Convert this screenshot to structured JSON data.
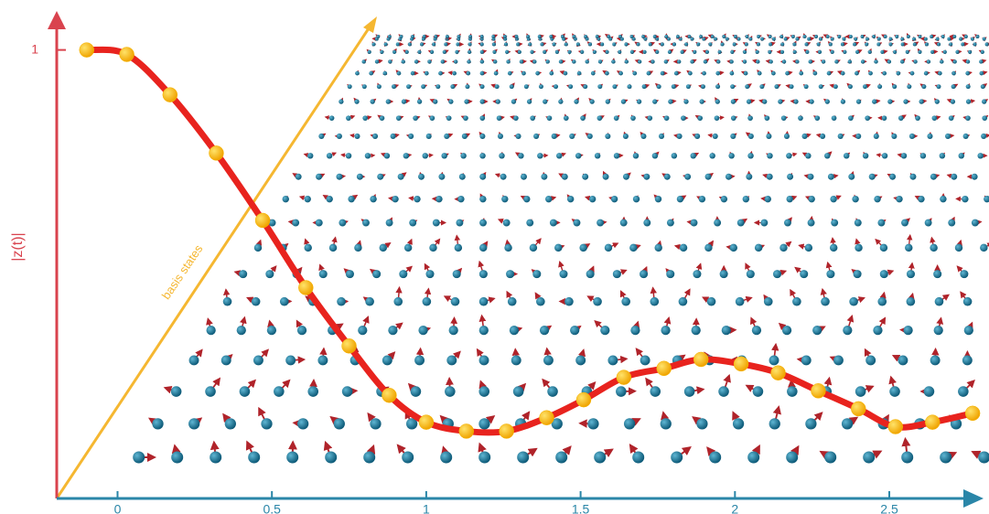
{
  "chart_data": {
    "type": "line",
    "y_label": "|z(t)|",
    "annotation": "basis states",
    "x": [
      -0.1,
      0.03,
      0.17,
      0.32,
      0.47,
      0.61,
      0.75,
      0.88,
      1.0,
      1.13,
      1.26,
      1.39,
      1.51,
      1.64,
      1.77,
      1.89,
      2.02,
      2.14,
      2.27,
      2.4,
      2.52,
      2.64,
      2.77
    ],
    "values": [
      1.0,
      0.99,
      0.9,
      0.77,
      0.62,
      0.47,
      0.34,
      0.23,
      0.17,
      0.15,
      0.15,
      0.18,
      0.22,
      0.27,
      0.29,
      0.31,
      0.3,
      0.28,
      0.24,
      0.2,
      0.16,
      0.17,
      0.19
    ],
    "color": "#e8231e",
    "marker_color": "#f7b500",
    "xlim": [
      -0.2,
      2.82
    ],
    "ylim": [
      0,
      1.04
    ],
    "xticks": [
      0,
      0.5,
      1,
      1.5,
      2,
      2.5
    ],
    "yticks": [
      1
    ]
  }
}
